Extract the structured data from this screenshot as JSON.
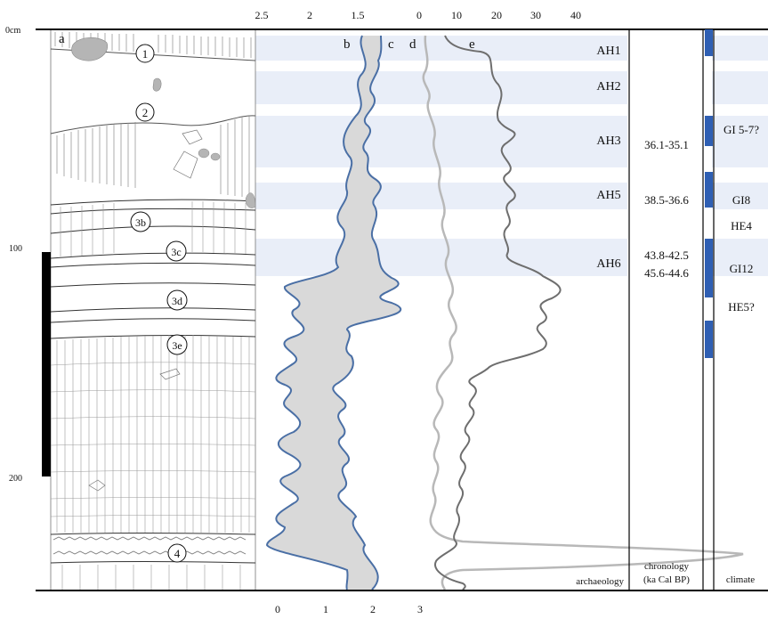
{
  "depth_axis": {
    "unit_label": "0cm",
    "ticks": [
      "100",
      "200"
    ]
  },
  "top_axis_b_ticks": [
    "2.5",
    "2",
    "1.5"
  ],
  "top_axis_d_ticks": [
    "0",
    "10",
    "20",
    "30",
    "40"
  ],
  "bottom_axis_c_ticks": [
    "0",
    "1",
    "2",
    "3"
  ],
  "panel_letters": {
    "a": "a",
    "b": "b",
    "c": "c",
    "d": "d",
    "e": "e"
  },
  "units": [
    "1",
    "2",
    "3b",
    "3c",
    "3d",
    "3e",
    "4"
  ],
  "archaeology": {
    "layers": [
      "AH1",
      "AH2",
      "AH3",
      "AH5",
      "AH6"
    ],
    "footer": "archaeology"
  },
  "chronology": {
    "dates": [
      "36.1-35.1",
      "38.5-36.6",
      "43.8-42.5",
      "45.6-44.6"
    ],
    "footer_line1": "chronology",
    "footer_line2": "(ka Cal BP)"
  },
  "climate": {
    "labels": [
      "GI 5-7?",
      "GI8",
      "HE4",
      "GI12",
      "HE5?"
    ],
    "footer": "climate"
  },
  "colors": {
    "band": "#e9eef8",
    "curve_b": "#4a6fa5",
    "fill_bc": "#d9d9d9",
    "curve_d": "#b8b8b8",
    "curve_e": "#6e6e6e",
    "climate_bar": "#2f5fb3",
    "outline": "#000000"
  }
}
